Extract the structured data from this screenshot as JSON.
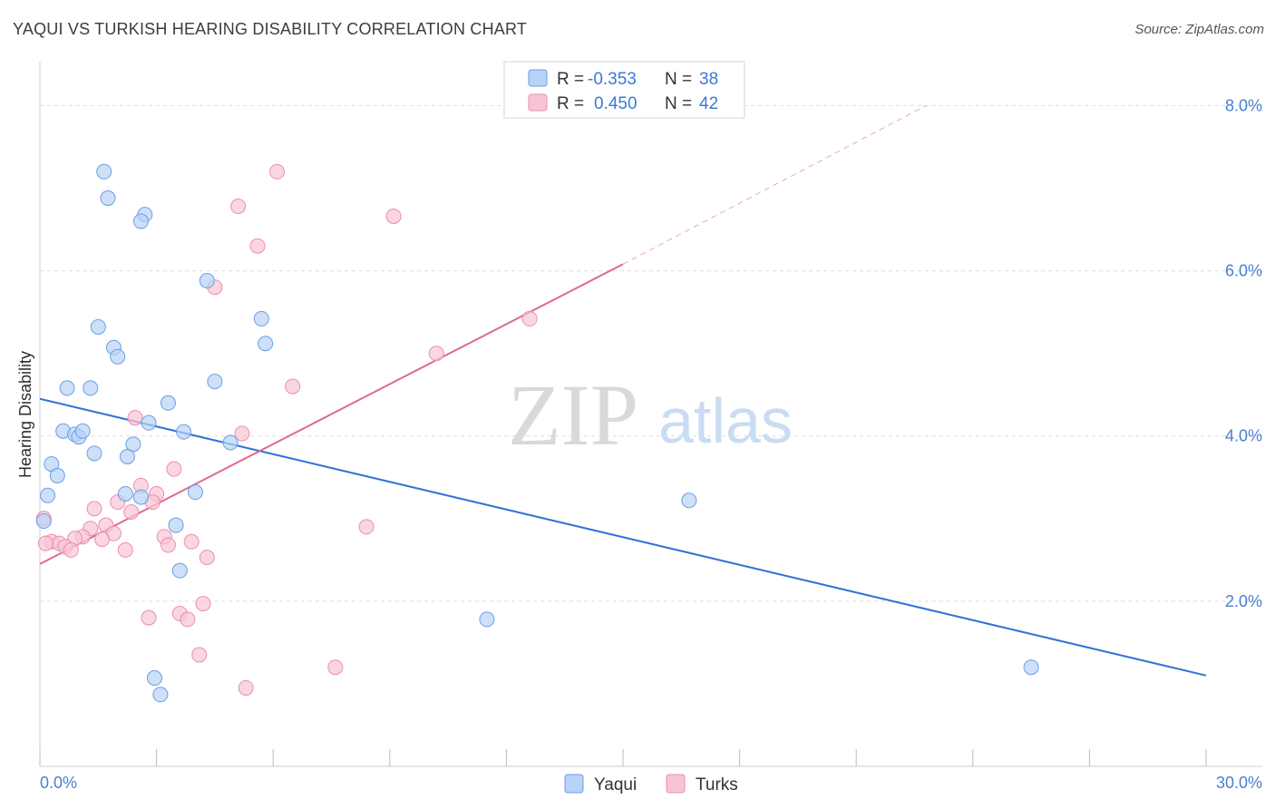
{
  "title": "YAQUI VS TURKISH HEARING DISABILITY CORRELATION CHART",
  "source": "Source: ZipAtlas.com",
  "watermark": {
    "zip": "ZIP",
    "atlas": "atlas"
  },
  "colors": {
    "yaqui_fill": "#b8d3f5",
    "yaqui_stroke": "#6a9ee6",
    "yaqui_line": "#2f74d6",
    "turks_fill": "#f8c4d4",
    "turks_stroke": "#ea8fac",
    "turks_line": "#e0698f",
    "tick_label": "#4a7fd0",
    "grid": "#dddddd"
  },
  "legend": {
    "rows": [
      {
        "r_label": "R =",
        "r_value": "-0.353",
        "n_label": "N =",
        "n_value": "38"
      },
      {
        "r_label": "R =",
        "r_value": "0.450",
        "n_label": "N =",
        "n_value": "42"
      }
    ]
  },
  "chart_data": {
    "type": "scatter",
    "xlabel": "",
    "ylabel": "Hearing Disability",
    "xlim": [
      0,
      30
    ],
    "ylim": [
      0,
      8.4
    ],
    "x_ticks": [
      0,
      30
    ],
    "x_tick_labels": [
      "0.0%",
      "30.0%"
    ],
    "y_ticks": [
      2,
      4,
      6,
      8
    ],
    "y_tick_labels": [
      "2.0%",
      "4.0%",
      "6.0%",
      "8.0%"
    ],
    "grid": true,
    "legend_position": "top-center",
    "series": [
      {
        "name": "Yaqui",
        "r": -0.353,
        "n": 38,
        "trendline": {
          "x": [
            0,
            30
          ],
          "y": [
            4.45,
            1.1
          ]
        },
        "points": [
          [
            1.65,
            7.2
          ],
          [
            1.75,
            6.88
          ],
          [
            2.7,
            6.68
          ],
          [
            2.6,
            6.6
          ],
          [
            4.3,
            5.88
          ],
          [
            5.7,
            5.42
          ],
          [
            5.8,
            5.12
          ],
          [
            1.5,
            5.32
          ],
          [
            1.9,
            5.07
          ],
          [
            2.0,
            4.96
          ],
          [
            0.7,
            4.58
          ],
          [
            1.3,
            4.58
          ],
          [
            4.5,
            4.66
          ],
          [
            3.3,
            4.4
          ],
          [
            0.6,
            4.06
          ],
          [
            0.9,
            4.02
          ],
          [
            1.0,
            3.99
          ],
          [
            1.1,
            4.06
          ],
          [
            3.7,
            4.05
          ],
          [
            2.8,
            4.16
          ],
          [
            4.9,
            3.92
          ],
          [
            2.4,
            3.9
          ],
          [
            1.4,
            3.79
          ],
          [
            2.25,
            3.75
          ],
          [
            0.3,
            3.66
          ],
          [
            0.45,
            3.52
          ],
          [
            0.2,
            3.28
          ],
          [
            2.2,
            3.3
          ],
          [
            2.6,
            3.26
          ],
          [
            4.0,
            3.32
          ],
          [
            0.1,
            2.97
          ],
          [
            3.5,
            2.92
          ],
          [
            3.6,
            2.37
          ],
          [
            16.7,
            3.22
          ],
          [
            11.5,
            1.78
          ],
          [
            25.5,
            1.2
          ],
          [
            2.95,
            1.07
          ],
          [
            3.1,
            0.87
          ]
        ]
      },
      {
        "name": "Turks",
        "r": 0.45,
        "n": 42,
        "trendline": {
          "x": [
            0,
            15,
            22.8
          ],
          "y": [
            2.45,
            6.08,
            8.0
          ],
          "solid_until_x": 15
        },
        "points": [
          [
            6.1,
            7.2
          ],
          [
            5.1,
            6.78
          ],
          [
            9.1,
            6.66
          ],
          [
            5.6,
            6.3
          ],
          [
            4.5,
            5.8
          ],
          [
            12.6,
            5.42
          ],
          [
            10.2,
            5.0
          ],
          [
            6.5,
            4.6
          ],
          [
            2.45,
            4.22
          ],
          [
            5.2,
            4.03
          ],
          [
            3.45,
            3.6
          ],
          [
            2.6,
            3.4
          ],
          [
            3.0,
            3.3
          ],
          [
            2.9,
            3.2
          ],
          [
            2.0,
            3.2
          ],
          [
            1.4,
            3.12
          ],
          [
            2.35,
            3.08
          ],
          [
            1.7,
            2.92
          ],
          [
            1.9,
            2.82
          ],
          [
            1.3,
            2.88
          ],
          [
            1.1,
            2.78
          ],
          [
            0.9,
            2.76
          ],
          [
            1.6,
            2.75
          ],
          [
            3.2,
            2.78
          ],
          [
            0.3,
            2.72
          ],
          [
            0.5,
            2.7
          ],
          [
            0.65,
            2.66
          ],
          [
            0.8,
            2.62
          ],
          [
            3.3,
            2.68
          ],
          [
            3.9,
            2.72
          ],
          [
            2.2,
            2.62
          ],
          [
            4.3,
            2.53
          ],
          [
            8.4,
            2.9
          ],
          [
            0.1,
            3.0
          ],
          [
            3.6,
            1.85
          ],
          [
            4.2,
            1.97
          ],
          [
            2.8,
            1.8
          ],
          [
            3.8,
            1.78
          ],
          [
            4.1,
            1.35
          ],
          [
            7.6,
            1.2
          ],
          [
            5.3,
            0.95
          ],
          [
            0.15,
            2.7
          ]
        ]
      }
    ]
  }
}
